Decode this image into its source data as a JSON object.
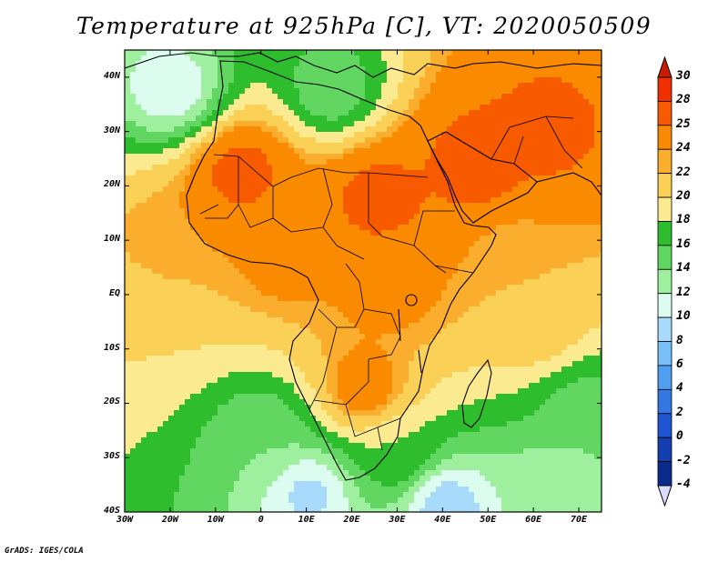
{
  "title": "Temperature at 925hPa [C], VT: 2020050509",
  "credit": "GrADS: IGES/COLA",
  "map": {
    "lon_range": [
      -30,
      75
    ],
    "lat_range": [
      -40,
      45
    ],
    "lat_labels": [
      "40N",
      "30N",
      "20N",
      "10N",
      "EQ",
      "10S",
      "20S",
      "30S",
      "40S"
    ],
    "lat_values": [
      40,
      30,
      20,
      10,
      0,
      -10,
      -20,
      -30,
      -40
    ],
    "lon_labels": [
      "30W",
      "20W",
      "10W",
      "0",
      "10E",
      "20E",
      "30E",
      "40E",
      "50E",
      "60E",
      "70E"
    ],
    "lon_values": [
      -30,
      -20,
      -10,
      0,
      10,
      20,
      30,
      40,
      50,
      60,
      70
    ]
  },
  "colorbar": {
    "labels": [
      "30",
      "28",
      "25",
      "24",
      "22",
      "20",
      "18",
      "16",
      "14",
      "12",
      "10",
      "8",
      "6",
      "4",
      "2",
      "0",
      "-2",
      "-4"
    ],
    "colors": [
      "#f03000",
      "#f85a00",
      "#fa8a00",
      "#fbad2e",
      "#fbd057",
      "#fcea90",
      "#2dbd2d",
      "#61d661",
      "#9ef09e",
      "#dcfcf0",
      "#a8dafc",
      "#79bff8",
      "#4f9ef0",
      "#3477e4",
      "#1f55d2",
      "#143fb0",
      "#0a2a8c"
    ],
    "top_color": "#c81e00",
    "bottom_color": "#dcdcfc"
  },
  "fields": {
    "background_temp": 20,
    "features": [
      {
        "lon": -5,
        "lat": 23,
        "value": 30
      },
      {
        "lon": 25,
        "lat": 18,
        "value": 30
      },
      {
        "lon": 47,
        "lat": 24,
        "value": 30
      },
      {
        "lon": 62,
        "lat": 30,
        "value": 29
      },
      {
        "lon": 28,
        "lat": 2,
        "value": 26
      },
      {
        "lon": 22,
        "lat": -17,
        "value": 27
      },
      {
        "lon": 5,
        "lat": 8,
        "value": 26
      },
      {
        "lon": -20,
        "lat": 10,
        "value": 25
      },
      {
        "lon": 55,
        "lat": 8,
        "value": 24
      },
      {
        "lon": 15,
        "lat": 38,
        "value": 16
      },
      {
        "lon": -20,
        "lat": 38,
        "value": 12
      },
      {
        "lon": 0,
        "lat": -25,
        "value": 16
      },
      {
        "lon": 10,
        "lat": -36,
        "value": 11
      },
      {
        "lon": 40,
        "lat": -38,
        "value": 10
      },
      {
        "lon": 65,
        "lat": -35,
        "value": 14
      },
      {
        "lon": 70,
        "lat": -20,
        "value": 17
      },
      {
        "lon": -25,
        "lat": -5,
        "value": 22
      },
      {
        "lon": 60,
        "lat": -5,
        "value": 24
      },
      {
        "lon": 30,
        "lat": -29,
        "value": 20
      }
    ]
  }
}
